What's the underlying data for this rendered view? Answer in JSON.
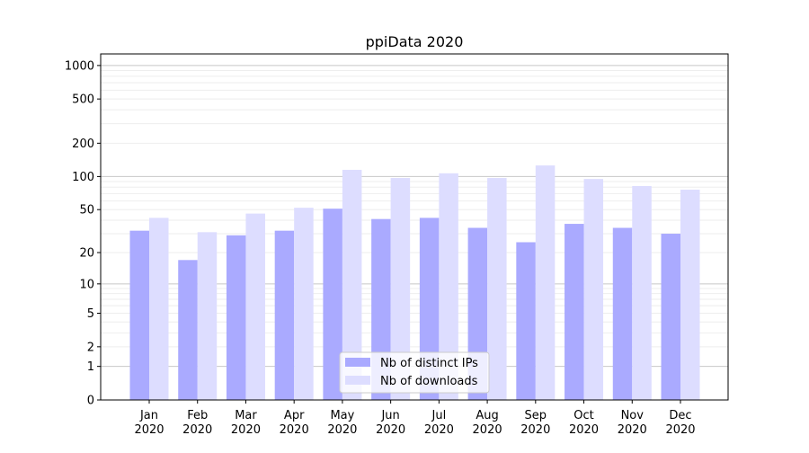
{
  "chart_data": {
    "type": "bar",
    "title": "ppiData 2020",
    "xlabel": "",
    "ylabel": "",
    "yscale": "symlog (log10(y+1))",
    "ylim": [
      0,
      1270
    ],
    "yticks": [
      0,
      1,
      2,
      5,
      10,
      20,
      50,
      100,
      200,
      500,
      1000
    ],
    "grid": true,
    "legend_position": "bottom-center",
    "categories": [
      "Jan\n2020",
      "Feb\n2020",
      "Mar\n2020",
      "Apr\n2020",
      "May\n2020",
      "Jun\n2020",
      "Jul\n2020",
      "Aug\n2020",
      "Sep\n2020",
      "Oct\n2020",
      "Nov\n2020",
      "Dec\n2020"
    ],
    "series": [
      {
        "name": "Nb of distinct IPs",
        "color": "#aaaaff",
        "values": [
          32,
          17,
          29,
          32,
          51,
          41,
          42,
          34,
          25,
          37,
          34,
          30
        ]
      },
      {
        "name": "Nb of downloads",
        "color": "#ddddff",
        "values": [
          42,
          31,
          46,
          52,
          115,
          97,
          107,
          97,
          126,
          95,
          82,
          76
        ]
      }
    ]
  }
}
